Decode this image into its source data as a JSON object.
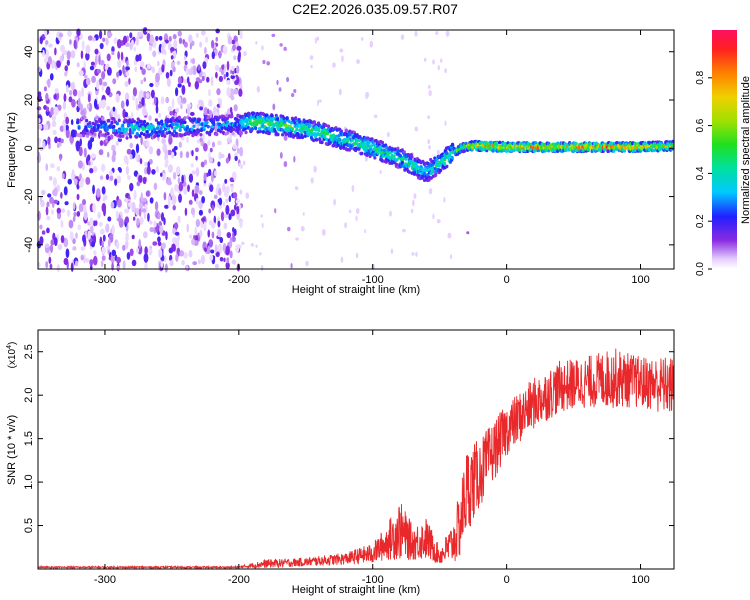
{
  "title": "C2E2.2026.035.09.57.R07",
  "colors": {
    "axis": "#000000",
    "snr_line": "#e8282a",
    "purple_light": "#d8b8f8",
    "purple_dark": "#6a00e0"
  },
  "chart_data": [
    {
      "type": "heatmap",
      "name": "spectrogram",
      "xlabel": "Height of straight line (km)",
      "ylabel": "Frequency (Hz)",
      "xlim": [
        -350,
        125
      ],
      "ylim": [
        -50,
        49
      ],
      "xticks": [
        -300,
        -200,
        -100,
        0,
        100
      ],
      "yticks": [
        -40,
        -20,
        0,
        20,
        40
      ],
      "colorbar": {
        "label": "Normalized spectral amplitude",
        "range": [
          0.0,
          1.0
        ],
        "ticks": [
          "0.0",
          "0.2",
          "0.4",
          "0.6",
          "0.8"
        ],
        "tick_values": [
          0.0,
          0.2,
          0.4,
          0.6,
          0.8
        ]
      },
      "ridge": {
        "description_points": [
          {
            "x": -300,
            "y": 9,
            "amp": 0.3
          },
          {
            "x": -280,
            "y": 8,
            "amp": 0.45
          },
          {
            "x": -200,
            "y": 10,
            "amp": 0.35
          },
          {
            "x": -190,
            "y": 11,
            "amp": 0.6
          },
          {
            "x": -150,
            "y": 8,
            "amp": 0.55
          },
          {
            "x": -110,
            "y": 2,
            "amp": 0.5
          },
          {
            "x": -80,
            "y": -4,
            "amp": 0.5
          },
          {
            "x": -60,
            "y": -10,
            "amp": 0.45
          },
          {
            "x": -40,
            "y": -2,
            "amp": 0.55
          },
          {
            "x": -30,
            "y": 1,
            "amp": 0.7
          },
          {
            "x": -20,
            "y": 1,
            "amp": 0.85
          },
          {
            "x": 0,
            "y": 0.5,
            "amp": 0.9
          },
          {
            "x": 100,
            "y": 0.5,
            "amp": 0.9
          },
          {
            "x": 125,
            "y": 1,
            "amp": 0.7
          }
        ]
      }
    },
    {
      "type": "line",
      "name": "snr",
      "xlabel": "Height of straight line (km)",
      "ylabel": "SNR (10 * v/v)",
      "yscale_label": "(x10",
      "yscale_exp": "4",
      "yscale_close": ")",
      "xlim": [
        -350,
        125
      ],
      "ylim": [
        0,
        2.75
      ],
      "xticks": [
        -300,
        -200,
        -100,
        0,
        100
      ],
      "yticks": [
        0.5,
        1.0,
        1.5,
        2.0,
        2.5
      ],
      "yticklabels": [
        "0.5",
        "1.0",
        "1.5",
        "2.0",
        "2.5"
      ],
      "envelope": {
        "x": [
          -350,
          -200,
          -180,
          -150,
          -120,
          -100,
          -90,
          -80,
          -70,
          -60,
          -50,
          -40,
          -35,
          -30,
          -20,
          -10,
          0,
          20,
          40,
          60,
          80,
          100,
          125
        ],
        "mean": [
          0.02,
          0.02,
          0.06,
          0.08,
          0.12,
          0.18,
          0.3,
          0.45,
          0.3,
          0.35,
          0.15,
          0.3,
          0.5,
          0.9,
          1.1,
          1.35,
          1.6,
          1.9,
          2.1,
          2.15,
          2.2,
          2.15,
          2.1
        ],
        "noise": [
          0.01,
          0.01,
          0.05,
          0.05,
          0.07,
          0.12,
          0.2,
          0.35,
          0.2,
          0.25,
          0.1,
          0.25,
          0.4,
          0.5,
          0.4,
          0.35,
          0.3,
          0.3,
          0.3,
          0.3,
          0.35,
          0.3,
          0.35
        ]
      }
    }
  ]
}
